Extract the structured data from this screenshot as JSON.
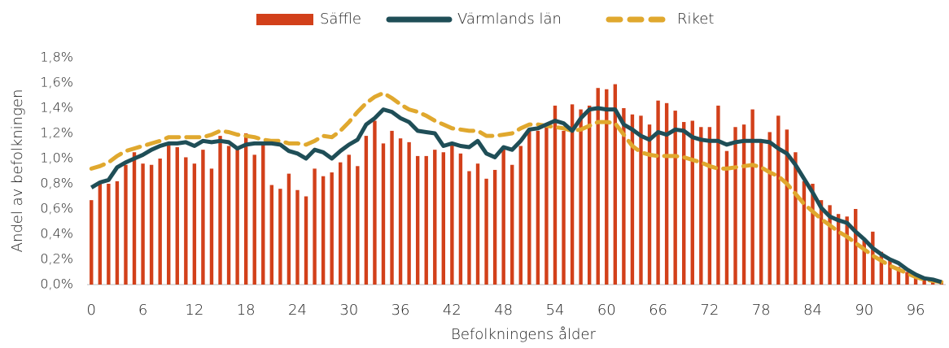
{
  "chart_data": {
    "type": "bar_line",
    "xlabel": "Befolkningens ålder",
    "ylabel": "Andel av befolkningen",
    "categories": [
      "0",
      null,
      null,
      null,
      null,
      null,
      "6",
      null,
      null,
      null,
      null,
      null,
      "12",
      null,
      null,
      null,
      null,
      null,
      "18",
      null,
      null,
      null,
      null,
      null,
      "24",
      null,
      null,
      null,
      null,
      null,
      "30",
      null,
      null,
      null,
      null,
      null,
      "36",
      null,
      null,
      null,
      null,
      null,
      "42",
      null,
      null,
      null,
      null,
      null,
      "48",
      null,
      null,
      null,
      null,
      null,
      "54",
      null,
      null,
      null,
      null,
      null,
      "60",
      null,
      null,
      null,
      null,
      null,
      "66",
      null,
      null,
      null,
      null,
      null,
      "72",
      null,
      null,
      null,
      null,
      null,
      "78",
      null,
      null,
      null,
      null,
      null,
      "84",
      null,
      null,
      null,
      null,
      null,
      "90",
      null,
      null,
      null,
      null,
      null,
      "96",
      null,
      null,
      null
    ],
    "ylim": [
      0,
      1.8
    ],
    "yticks": [
      {
        "value": 0,
        "label": "0,0%"
      },
      {
        "value": 0.2,
        "label": "0,2%"
      },
      {
        "value": 0.4,
        "label": "0,4%"
      },
      {
        "value": 0.6,
        "label": "0,6%"
      },
      {
        "value": 0.8,
        "label": "0,8%"
      },
      {
        "value": 1.0,
        "label": "1,0%"
      },
      {
        "value": 1.2,
        "label": "1,2%"
      },
      {
        "value": 1.4,
        "label": "1,4%"
      },
      {
        "value": 1.6,
        "label": "1,6%"
      },
      {
        "value": 1.8,
        "label": "1,8%"
      }
    ],
    "legend": "top",
    "series": [
      {
        "name": "Säffle",
        "type": "bar",
        "color": "#d2401a",
        "values": [
          0.67,
          0.8,
          0.8,
          0.82,
          0.95,
          1.05,
          0.96,
          0.95,
          1.0,
          1.12,
          1.09,
          1.01,
          0.96,
          1.07,
          0.92,
          1.18,
          1.1,
          1.08,
          1.2,
          1.03,
          1.12,
          0.79,
          0.76,
          0.88,
          0.75,
          0.7,
          0.92,
          0.86,
          0.89,
          0.97,
          1.03,
          0.94,
          1.18,
          1.3,
          1.12,
          1.22,
          1.16,
          1.13,
          1.02,
          1.02,
          1.07,
          1.05,
          1.12,
          1.04,
          0.9,
          0.96,
          0.84,
          0.91,
          1.08,
          0.95,
          1.1,
          1.22,
          1.22,
          1.25,
          1.42,
          1.22,
          1.43,
          1.39,
          1.42,
          1.56,
          1.55,
          1.59,
          1.4,
          1.35,
          1.34,
          1.27,
          1.46,
          1.44,
          1.38,
          1.29,
          1.3,
          1.25,
          1.25,
          1.42,
          1.06,
          1.25,
          1.27,
          1.39,
          1.14,
          1.21,
          1.34,
          1.23,
          1.05,
          0.82,
          0.8,
          0.67,
          0.63,
          0.56,
          0.54,
          0.6,
          0.35,
          0.42,
          0.26,
          0.2,
          0.14,
          0.1,
          0.07,
          0.05,
          0.04,
          0.03
        ]
      },
      {
        "name": "Värmlands län",
        "type": "line",
        "color": "#1f4e57",
        "values": [
          0.77,
          0.81,
          0.83,
          0.93,
          0.97,
          1.0,
          1.03,
          1.07,
          1.1,
          1.12,
          1.12,
          1.13,
          1.1,
          1.14,
          1.13,
          1.14,
          1.13,
          1.08,
          1.11,
          1.12,
          1.12,
          1.12,
          1.11,
          1.06,
          1.04,
          1.0,
          1.07,
          1.05,
          1.0,
          1.06,
          1.11,
          1.15,
          1.27,
          1.32,
          1.39,
          1.37,
          1.32,
          1.29,
          1.22,
          1.21,
          1.2,
          1.1,
          1.12,
          1.1,
          1.09,
          1.14,
          1.04,
          1.01,
          1.09,
          1.07,
          1.14,
          1.23,
          1.24,
          1.27,
          1.3,
          1.28,
          1.22,
          1.32,
          1.39,
          1.4,
          1.39,
          1.39,
          1.27,
          1.23,
          1.18,
          1.15,
          1.21,
          1.19,
          1.23,
          1.22,
          1.17,
          1.15,
          1.14,
          1.14,
          1.11,
          1.13,
          1.14,
          1.14,
          1.14,
          1.13,
          1.08,
          1.04,
          0.95,
          0.84,
          0.73,
          0.61,
          0.54,
          0.51,
          0.49,
          0.42,
          0.36,
          0.29,
          0.24,
          0.2,
          0.17,
          0.12,
          0.08,
          0.05,
          0.04,
          0.02
        ]
      },
      {
        "name": "Riket",
        "type": "line",
        "dashed": true,
        "color": "#e0a82e",
        "values": [
          0.92,
          0.94,
          0.97,
          1.02,
          1.06,
          1.08,
          1.1,
          1.12,
          1.14,
          1.17,
          1.17,
          1.17,
          1.17,
          1.17,
          1.19,
          1.22,
          1.21,
          1.19,
          1.18,
          1.17,
          1.15,
          1.14,
          1.14,
          1.12,
          1.12,
          1.11,
          1.14,
          1.18,
          1.17,
          1.22,
          1.29,
          1.37,
          1.44,
          1.49,
          1.52,
          1.48,
          1.43,
          1.39,
          1.37,
          1.34,
          1.3,
          1.27,
          1.24,
          1.23,
          1.22,
          1.22,
          1.18,
          1.18,
          1.19,
          1.2,
          1.24,
          1.27,
          1.27,
          1.26,
          1.25,
          1.24,
          1.22,
          1.23,
          1.26,
          1.29,
          1.29,
          1.28,
          1.19,
          1.1,
          1.05,
          1.03,
          1.02,
          1.02,
          1.02,
          1.01,
          0.99,
          0.97,
          0.94,
          0.92,
          0.92,
          0.93,
          0.94,
          0.95,
          0.93,
          0.89,
          0.86,
          0.8,
          0.72,
          0.64,
          0.58,
          0.52,
          0.47,
          0.42,
          0.38,
          0.33,
          0.28,
          0.23,
          0.19,
          0.15,
          0.12,
          0.09,
          0.06,
          0.04,
          0.03,
          0.02
        ]
      }
    ]
  }
}
